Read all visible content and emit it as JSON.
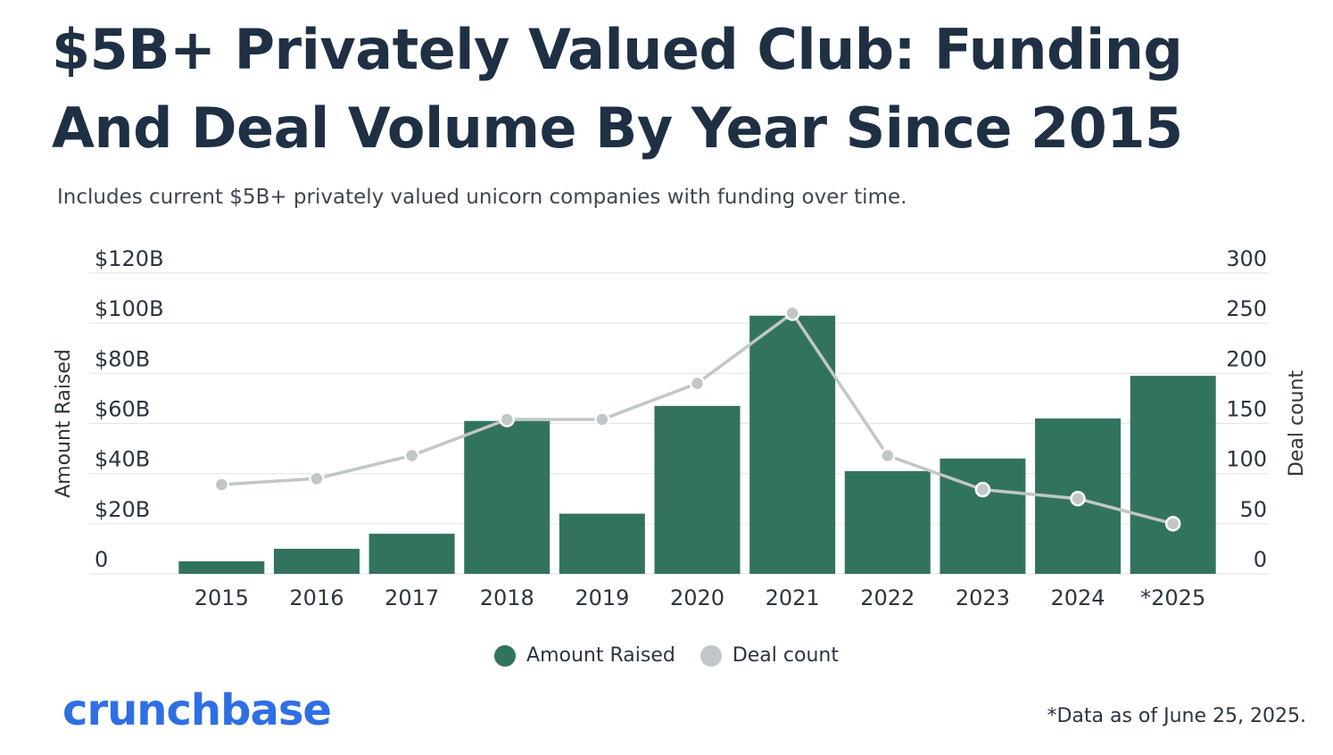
{
  "title": "$5B+ Privately Valued Club: Funding And Deal Volume By Year Since 2015",
  "subtitle": "Includes current $5B+ privately valued unicorn companies with funding over time.",
  "logo": "crunchbase",
  "footnote": "*Data as of June 25, 2025.",
  "colors": {
    "bar": "#327360",
    "line": "#c1c6c9",
    "grid": "#e4e6e8",
    "title": "#1f3044",
    "brand": "#2f6fe4"
  },
  "chart_data": {
    "type": "bar",
    "categories": [
      "2015",
      "2016",
      "2017",
      "2018",
      "2019",
      "2020",
      "2021",
      "2022",
      "2023",
      "2024",
      "*2025"
    ],
    "series": [
      {
        "name": "Amount Raised",
        "type": "bar",
        "axis": "left",
        "values": [
          5,
          10,
          16,
          61,
          24,
          67,
          103,
          41,
          46,
          62,
          79
        ]
      },
      {
        "name": "Deal count",
        "type": "line",
        "axis": "right",
        "values": [
          89,
          95,
          118,
          154,
          154,
          190,
          260,
          118,
          84,
          75,
          50
        ]
      }
    ],
    "ylabel_left": "Amount Raised",
    "ylabel_right": "Deal count",
    "ylim_left": [
      0,
      120
    ],
    "ylim_right": [
      0,
      300
    ],
    "yticks_left": [
      "0",
      "$20B",
      "$40B",
      "$60B",
      "$80B",
      "$100B",
      "$120B"
    ],
    "yticks_right": [
      "0",
      "50",
      "100",
      "150",
      "200",
      "250",
      "300"
    ],
    "grid": true,
    "legend": "bottom-center"
  }
}
